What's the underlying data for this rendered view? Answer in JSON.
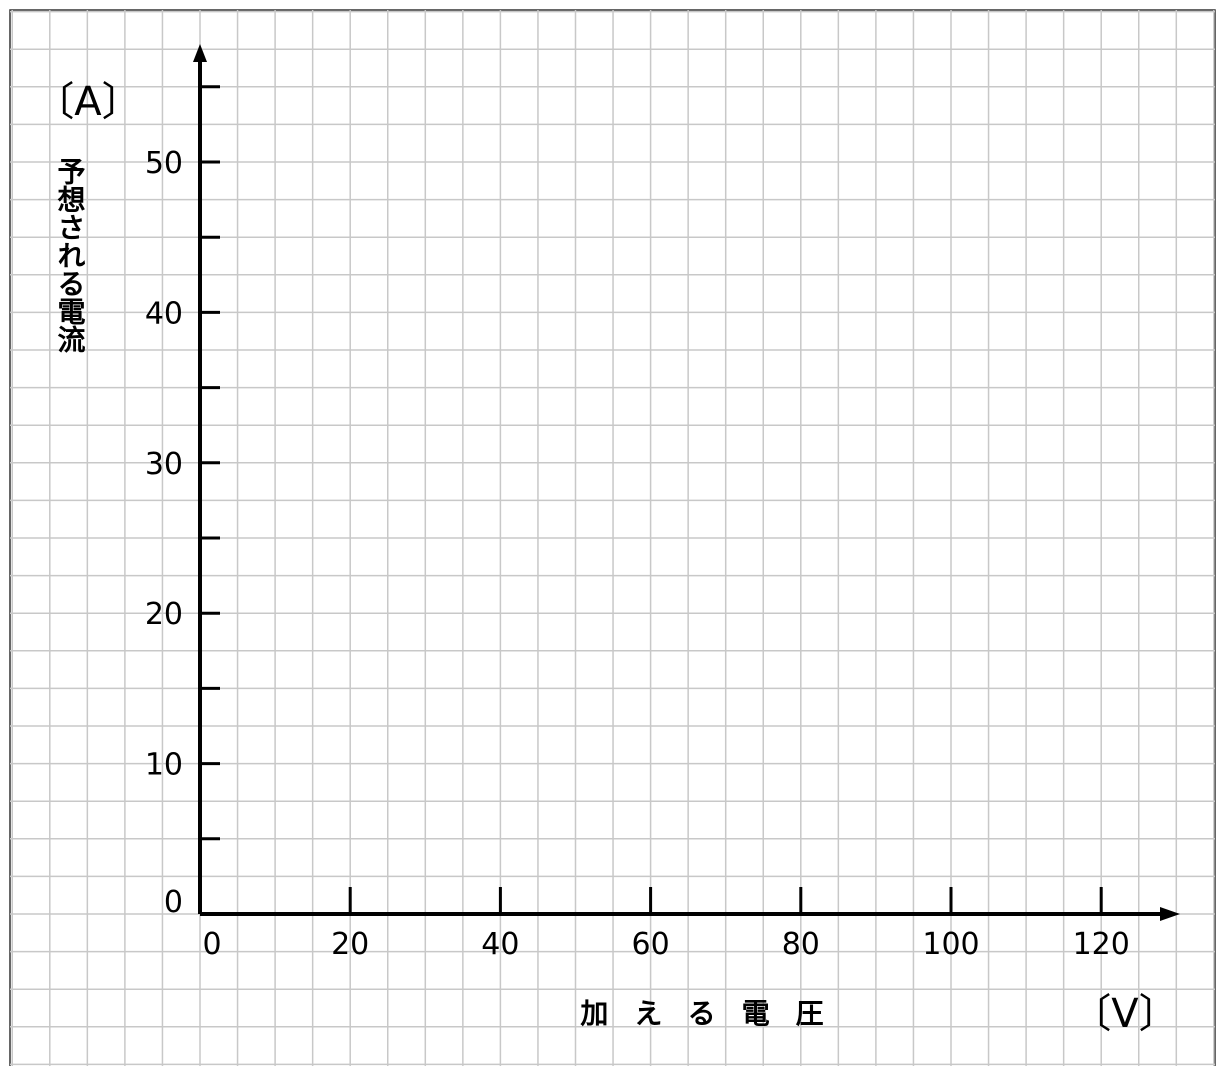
{
  "chart_data": {
    "type": "line",
    "title": "",
    "xlabel": "加える電圧",
    "ylabel": "予想される電流",
    "x_unit": "〔V〕",
    "y_unit": "〔A〕",
    "xlim": [
      0,
      130
    ],
    "ylim": [
      0,
      55
    ],
    "x_ticks": [
      0,
      20,
      40,
      60,
      80,
      100,
      120
    ],
    "y_ticks": [
      0,
      10,
      20,
      30,
      40,
      50
    ],
    "x_tick_labels": [
      "0",
      "20",
      "40",
      "60",
      "80",
      "100",
      "120"
    ],
    "y_tick_labels": [
      "0",
      "10",
      "20",
      "30",
      "40",
      "50"
    ],
    "x_minor_step": 5,
    "y_minor_step": 2.5,
    "grid": true,
    "grid_color": "#c8c8c8",
    "axis_color": "#000000",
    "series": []
  }
}
